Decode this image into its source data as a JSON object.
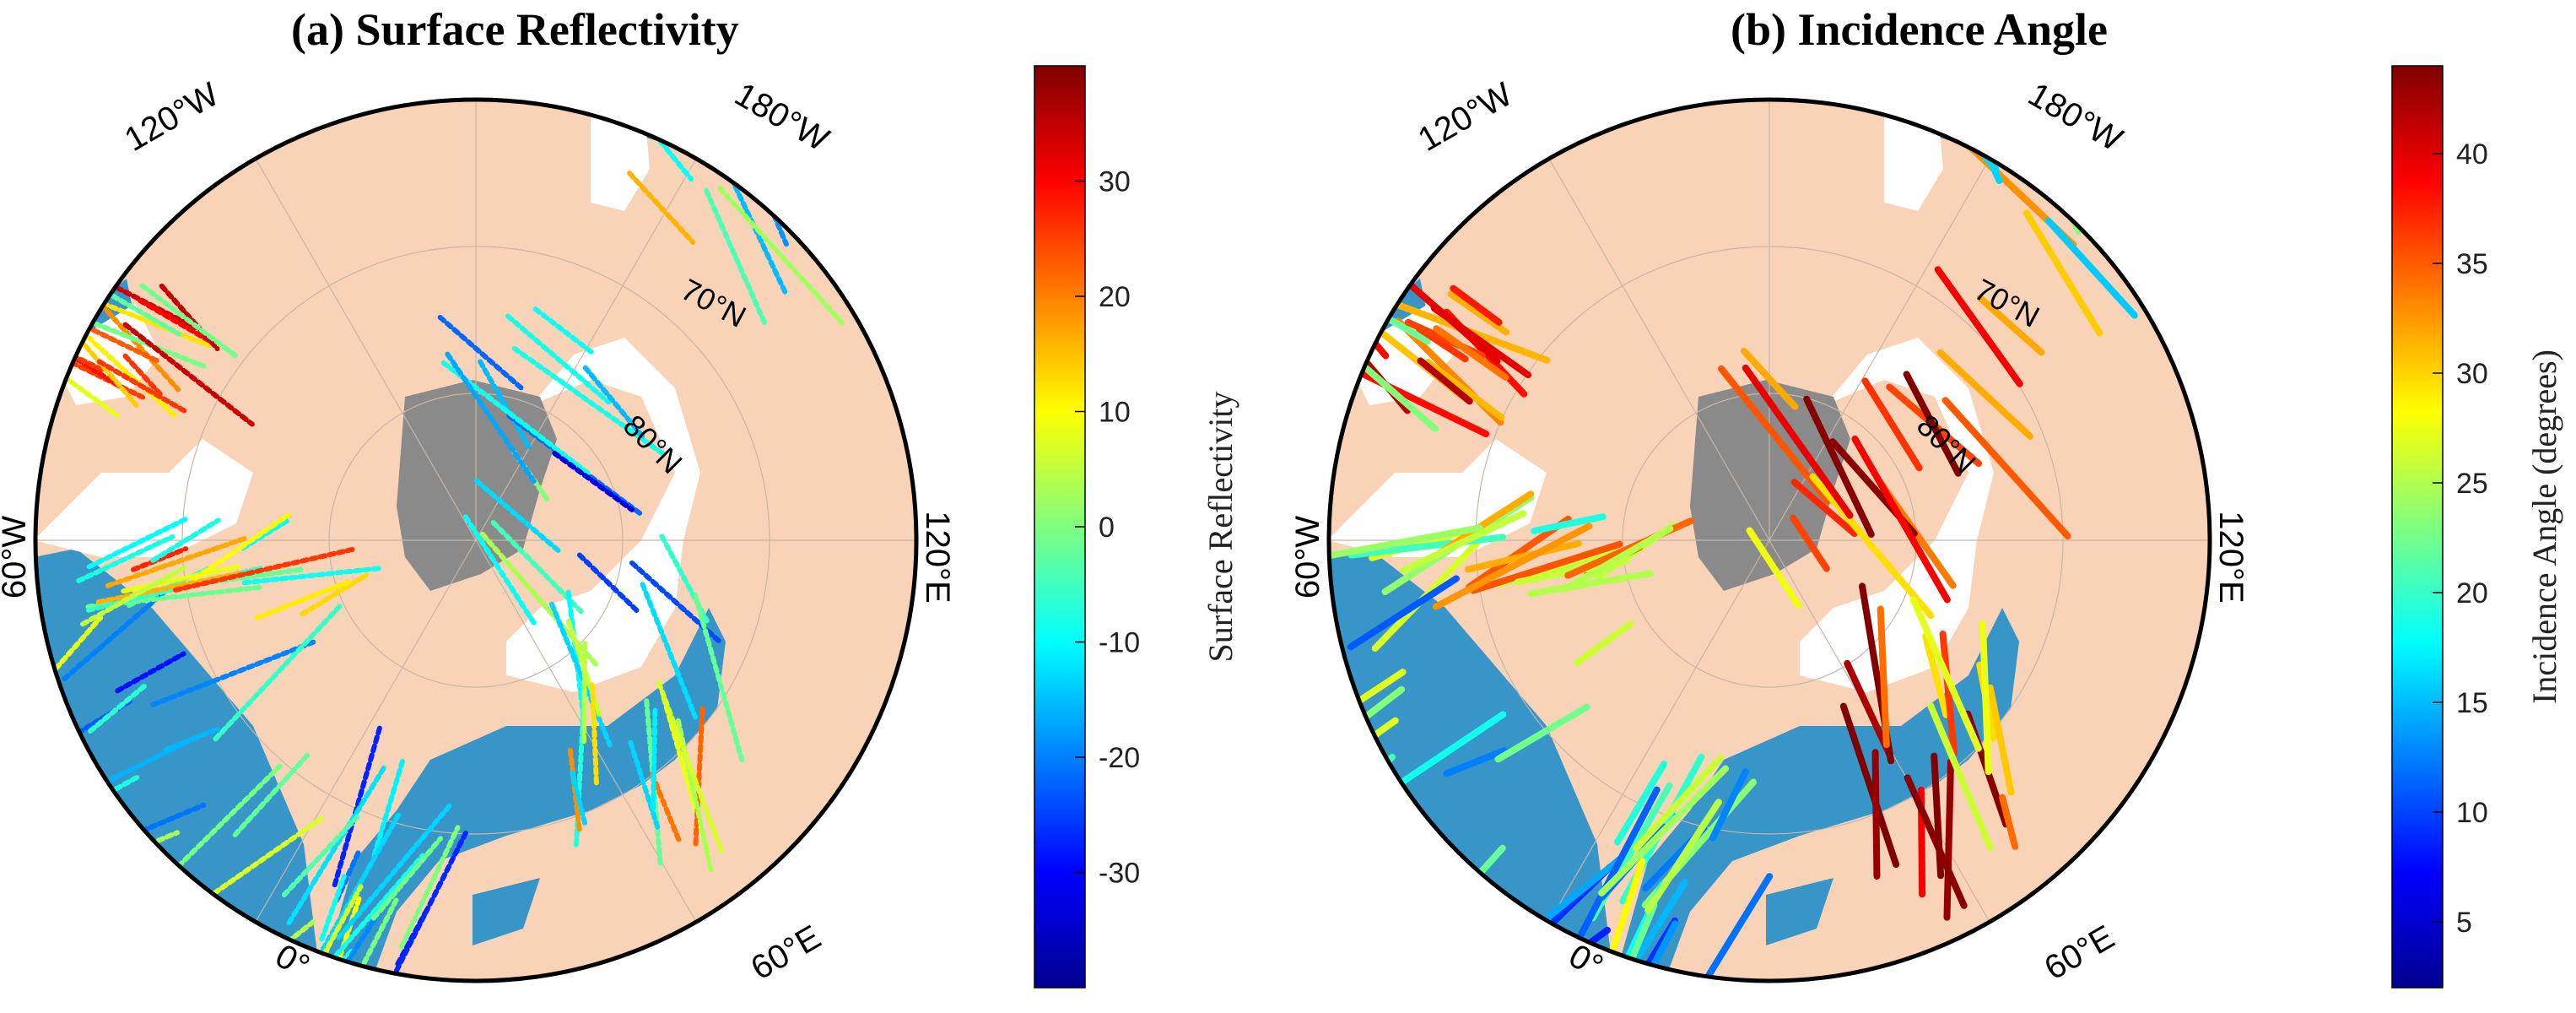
{
  "panels": [
    {
      "id": "a",
      "title": "(a) Surface Reflectivity",
      "lon_labels": {
        "w120": "120°W",
        "w180": "180°W",
        "w60": "60°W",
        "e0": "0°",
        "e60": "60°E",
        "e120": "120°E"
      },
      "lat_labels": {
        "n70": "70°N",
        "n80": "80°N"
      },
      "colorbar": {
        "label": "Surface Reflectivity",
        "range": [
          -40,
          40
        ],
        "ticks": [
          "30",
          "20",
          "10",
          "0",
          "-10",
          "-20",
          "-30"
        ],
        "tick_values": [
          30,
          20,
          10,
          0,
          -10,
          -20,
          -30
        ]
      }
    },
    {
      "id": "b",
      "title": "(b) Incidence Angle",
      "lon_labels": {
        "w120": "120°W",
        "w180": "180°W",
        "w60": "60°W",
        "e0": "0°",
        "e60": "60°E",
        "e120": "120°E"
      },
      "lat_labels": {
        "n70": "70°N",
        "n80": "80°N"
      },
      "colorbar": {
        "label": "Incidence Angle (degrees)",
        "range": [
          2,
          44
        ],
        "ticks": [
          "40",
          "35",
          "30",
          "25",
          "20",
          "15",
          "10",
          "5"
        ],
        "tick_values": [
          40,
          35,
          30,
          25,
          20,
          15,
          10,
          5
        ]
      }
    }
  ],
  "colors": {
    "land": "#f8d3b8",
    "ocean": "#3795c8",
    "ice": "#ffffff",
    "greenland": "#8a8a8a",
    "frame": "#000000",
    "grid": "#c8b6a8"
  }
}
